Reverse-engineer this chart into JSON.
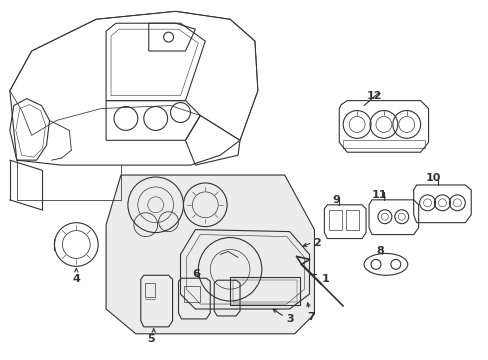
{
  "bg_color": "#ffffff",
  "fig_width": 4.89,
  "fig_height": 3.6,
  "dpi": 100,
  "line_color": "#333333",
  "lw": 0.8
}
